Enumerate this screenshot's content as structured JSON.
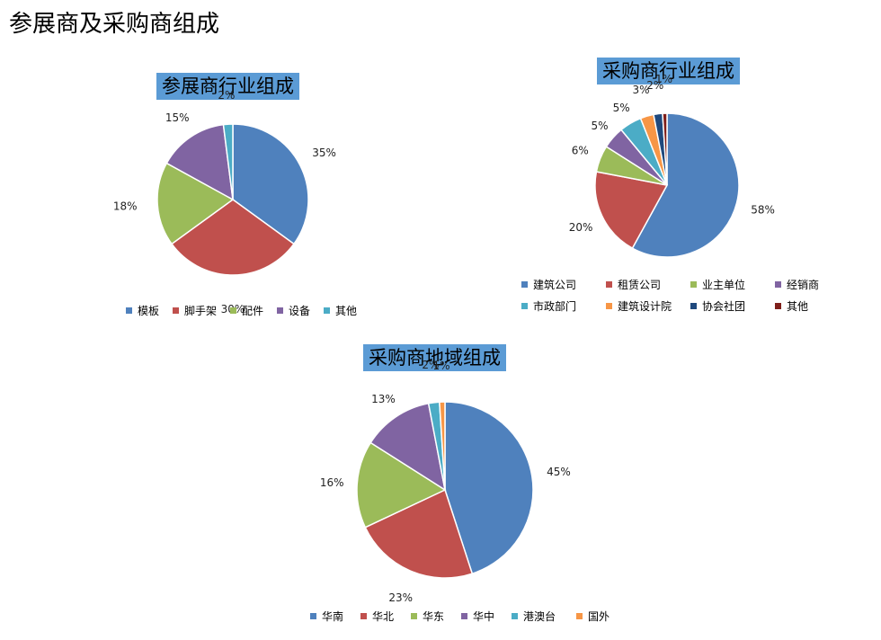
{
  "page": {
    "title": "参展商及采购商组成"
  },
  "chart_data": [
    {
      "type": "pie",
      "title": "参展商行业组成",
      "categories": [
        "模板",
        "脚手架",
        "配件",
        "设备",
        "其他"
      ],
      "values": [
        35,
        30,
        18,
        15,
        2
      ],
      "labels": [
        "35%",
        "30%",
        "18%",
        "15%",
        "2%"
      ],
      "colors": [
        "#4f81bd",
        "#c0504d",
        "#9bbb59",
        "#8064a2",
        "#4bacc6"
      ],
      "legend": "bottom"
    },
    {
      "type": "pie",
      "title": "采购商行业组成",
      "categories": [
        "建筑公司",
        "租赁公司",
        "业主单位",
        "经销商",
        "市政部门",
        "建筑设计院",
        "协会社团",
        "其他"
      ],
      "values": [
        58,
        20,
        6,
        5,
        5,
        3,
        2,
        1
      ],
      "labels": [
        "58%",
        "20%",
        "6%",
        "5%",
        "5%",
        "3%",
        "2%",
        "1%"
      ],
      "colors": [
        "#4f81bd",
        "#c0504d",
        "#9bbb59",
        "#8064a2",
        "#4bacc6",
        "#f79646",
        "#1f497d",
        "#7f1f1a"
      ],
      "legend": "bottom"
    },
    {
      "type": "pie",
      "title": "采购商地域组成",
      "categories": [
        "华南",
        "华北",
        "华东",
        "华中",
        "港澳台",
        "国外"
      ],
      "values": [
        45,
        23,
        16,
        13,
        2,
        1
      ],
      "labels": [
        "45%",
        "23%",
        "16%",
        "13%",
        "2%",
        "1%"
      ],
      "colors": [
        "#4f81bd",
        "#c0504d",
        "#9bbb59",
        "#8064a2",
        "#4bacc6",
        "#f79646"
      ],
      "legend": "bottom"
    }
  ]
}
